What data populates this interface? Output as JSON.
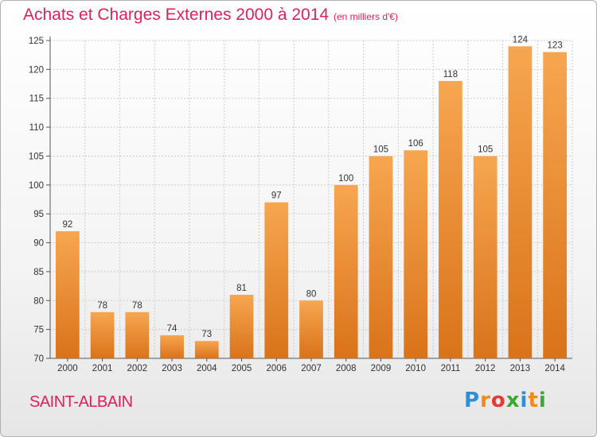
{
  "title": "Achats et Charges Externes 2000 à 2014",
  "subtitle": "(en milliers d'€)",
  "place": "SAINT-ALBAIN",
  "logo": {
    "letters": [
      "P",
      "r",
      "o",
      "x",
      "i",
      "t",
      "i"
    ],
    "colors": [
      "#2d8fd6",
      "#f08a1c",
      "#e53935",
      "#3aaa35",
      "#2d8fd6",
      "#f08a1c",
      "#3aaa35"
    ]
  },
  "colors": {
    "bar_light": "#f7a650",
    "bar_dark": "#d9731a",
    "title": "#e0205a",
    "grid": "#cccccc"
  },
  "chart_data": {
    "type": "bar",
    "title": "Achats et Charges Externes 2000 à 2014",
    "subtitle": "(en milliers d'€)",
    "categories": [
      "2000",
      "2001",
      "2002",
      "2003",
      "2004",
      "2005",
      "2006",
      "2007",
      "2008",
      "2009",
      "2010",
      "2011",
      "2012",
      "2013",
      "2014"
    ],
    "values": [
      92,
      78,
      78,
      74,
      73,
      81,
      97,
      80,
      100,
      105,
      106,
      118,
      105,
      124,
      123
    ],
    "data_labels": [
      "92",
      "78",
      "78",
      "74",
      "73",
      "81",
      "97",
      "80",
      "100",
      "105",
      "106",
      "118",
      "105",
      "124",
      "123"
    ],
    "ylim": [
      70,
      125
    ],
    "yticks": [
      70,
      75,
      80,
      85,
      90,
      95,
      100,
      105,
      110,
      115,
      120,
      125
    ],
    "xlabel": "",
    "ylabel": "",
    "grid": true
  }
}
